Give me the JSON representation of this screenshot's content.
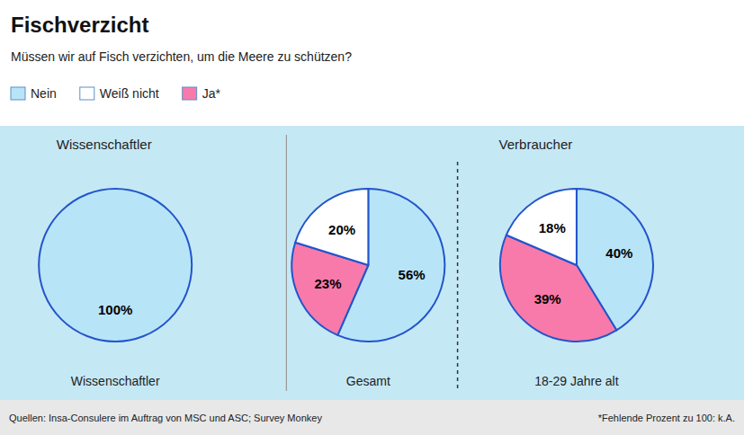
{
  "title": "Fischverzicht",
  "subtitle": "Müssen wir auf Fisch verzichten, um die Meere zu schützen?",
  "legend": "top",
  "categories": [
    "Nein",
    "Weiß nicht",
    "Ja*"
  ],
  "colors": [
    "#b8e4f8",
    "#ffffff",
    "#f87aaa"
  ],
  "section_labels": [
    "Wissenschaftler",
    "Verbraucher"
  ],
  "notes": [
    "Quellen: Insa-Consulere im Auftrag von MSC und ASC; Survey Monkey",
    "*Fehlende Prozent zu 100: k.A."
  ],
  "chart_data": [
    {
      "type": "pie",
      "title": "Wissenschaftler",
      "values": [
        100
      ],
      "value_labels": [
        "100%"
      ],
      "colors": [
        "#b8e4f8"
      ],
      "data_labels": true
    },
    {
      "type": "pie",
      "title": "Gesamt",
      "values": [
        56,
        23,
        20
      ],
      "value_labels": [
        "56%",
        "23%",
        "20%"
      ],
      "colors": [
        "#b8e4f8",
        "#f87aaa",
        "#ffffff"
      ],
      "data_labels": true
    },
    {
      "type": "pie",
      "title": "18-29 Jahre alt",
      "values": [
        40,
        39,
        18
      ],
      "value_labels": [
        "40%",
        "39%",
        "18%"
      ],
      "colors": [
        "#b8e4f8",
        "#f87aaa",
        "#ffffff"
      ],
      "data_labels": true
    }
  ]
}
